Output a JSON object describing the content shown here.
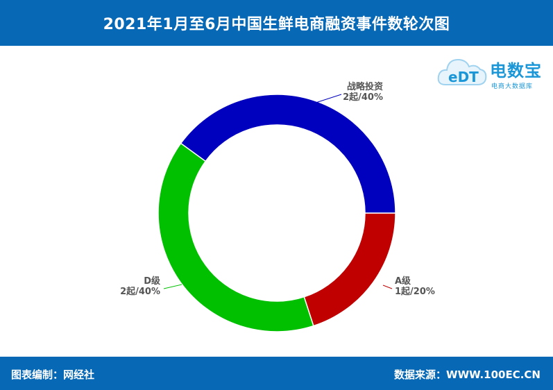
{
  "header": {
    "title": "2021年1月至6月中国生鲜电商融资事件数轮次图"
  },
  "footer": {
    "left": "图表编制：网经社",
    "right": "数据来源：WWW.100EC.CN"
  },
  "logo": {
    "name": "电数宝",
    "sub": "电商大数据库",
    "mark": "eDT"
  },
  "colors": {
    "header_bg": "#0768b5",
    "a": "#c00000",
    "d": "#00c000",
    "strategic": "#0000bf"
  },
  "chart_data": {
    "type": "pie",
    "donut": true,
    "title": "2021年1月至6月中国生鲜电商融资事件数轮次图",
    "slices": [
      {
        "name": "A级",
        "value": 1,
        "percent": 20,
        "label": "1起/20%",
        "color": "#c00000"
      },
      {
        "name": "D级",
        "value": 2,
        "percent": 40,
        "label": "2起/40%",
        "color": "#00c000"
      },
      {
        "name": "战略投资",
        "value": 2,
        "percent": 40,
        "label": "2起/40%",
        "color": "#0000bf"
      }
    ]
  }
}
